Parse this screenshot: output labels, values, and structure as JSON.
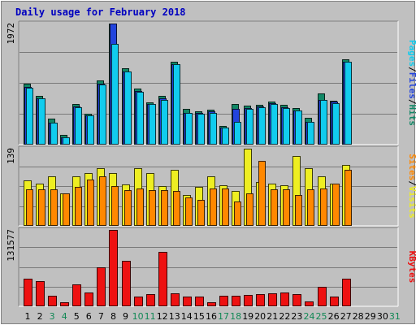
{
  "title": "Daily usage for February 2018",
  "colors": {
    "background": "#c0c0c0",
    "panel_bg": "#c0c0c0",
    "grid": "#7a7a7a",
    "title": "#0000c0",
    "hits": "#118866",
    "files": "#2244dd",
    "pages": "#11ccee",
    "visits": "#eeee22",
    "sites": "#ff8800",
    "kbytes": "#ee1111",
    "weekday_label": "#000000",
    "weekend_label": "#118855"
  },
  "right_labels": {
    "top": [
      {
        "text": "Pages",
        "color": "#11ccee"
      },
      {
        "text": "/",
        "color": "#000000"
      },
      {
        "text": "Files",
        "color": "#2244dd"
      },
      {
        "text": "/",
        "color": "#000000"
      },
      {
        "text": "Hits",
        "color": "#118866"
      }
    ],
    "middle": [
      {
        "text": "Sites",
        "color": "#ff8800"
      },
      {
        "text": "/",
        "color": "#000000"
      },
      {
        "text": "Visits",
        "color": "#eeee22"
      }
    ],
    "bottom": [
      {
        "text": "KBytes",
        "color": "#ee1111"
      }
    ]
  },
  "chart_data": {
    "type": "bar",
    "title": "Daily usage for February 2018",
    "categories": [
      "1",
      "2",
      "3",
      "4",
      "5",
      "6",
      "7",
      "8",
      "9",
      "10",
      "11",
      "12",
      "13",
      "14",
      "15",
      "16",
      "17",
      "18",
      "19",
      "20",
      "21",
      "22",
      "23",
      "24",
      "25",
      "26",
      "27",
      "28",
      "29",
      "30",
      "31"
    ],
    "weekend_days": [
      "3",
      "4",
      "10",
      "11",
      "17",
      "18",
      "24",
      "25",
      "31"
    ],
    "panels": [
      {
        "name": "top",
        "max_label": "1972",
        "ylim": [
          0,
          1972
        ],
        "series": [
          {
            "name": "Hits",
            "values": [
              990,
              780,
              410,
              140,
              650,
              490,
              1040,
              1972,
              1240,
              900,
              680,
              780,
              1340,
              570,
              530,
              560,
              290,
              650,
              630,
              640,
              690,
              640,
              590,
              430,
              820,
              710,
              1390,
              0,
              0,
              0,
              0
            ]
          },
          {
            "name": "Files",
            "values": [
              930,
              740,
              350,
              100,
              610,
              460,
              990,
              1972,
              1190,
              860,
              650,
              740,
              1310,
              510,
              500,
              530,
              260,
              570,
              580,
              610,
              670,
              600,
              550,
              360,
              720,
              690,
              1350,
              0,
              0,
              0,
              0
            ]
          },
          {
            "name": "Pages",
            "values": [
              920,
              740,
              350,
              100,
              600,
              460,
              970,
              1640,
              1190,
              850,
              650,
              720,
              1300,
              510,
              490,
              500,
              260,
              360,
              570,
              600,
              650,
              580,
              540,
              360,
              720,
              670,
              1340,
              0,
              0,
              0,
              0
            ]
          }
        ]
      },
      {
        "name": "middle",
        "max_label": "139",
        "ylim": [
          0,
          139
        ],
        "series": [
          {
            "name": "Visits",
            "values": [
              82,
              75,
              88,
              58,
              89,
              94,
              103,
              94,
              74,
              103,
              95,
              71,
              101,
              55,
              70,
              88,
              73,
              62,
              139,
              79,
              75,
              72,
              126,
              104,
              88,
              76,
              110,
              0,
              0,
              0,
              0
            ]
          },
          {
            "name": "Sites",
            "values": [
              65,
              65,
              65,
              57,
              70,
              83,
              88,
              71,
              63,
              66,
              63,
              63,
              62,
              50,
              46,
              67,
              66,
              43,
              58,
              117,
              65,
              65,
              54,
              65,
              66,
              75,
              101,
              0,
              0,
              0,
              0
            ]
          }
        ]
      },
      {
        "name": "bottom",
        "max_label": "131577",
        "ylim": [
          0,
          131577
        ],
        "series": [
          {
            "name": "KBytes",
            "values": [
              47000,
              42000,
              17000,
              6000,
              37000,
              23000,
              66000,
              131577,
              78000,
              16000,
              20000,
              93000,
              21000,
              15000,
              15000,
              6000,
              17000,
              17000,
              19000,
              20000,
              21000,
              22000,
              20000,
              7000,
              32000,
              16000,
              46000,
              0,
              0,
              0,
              0
            ]
          }
        ]
      }
    ]
  }
}
